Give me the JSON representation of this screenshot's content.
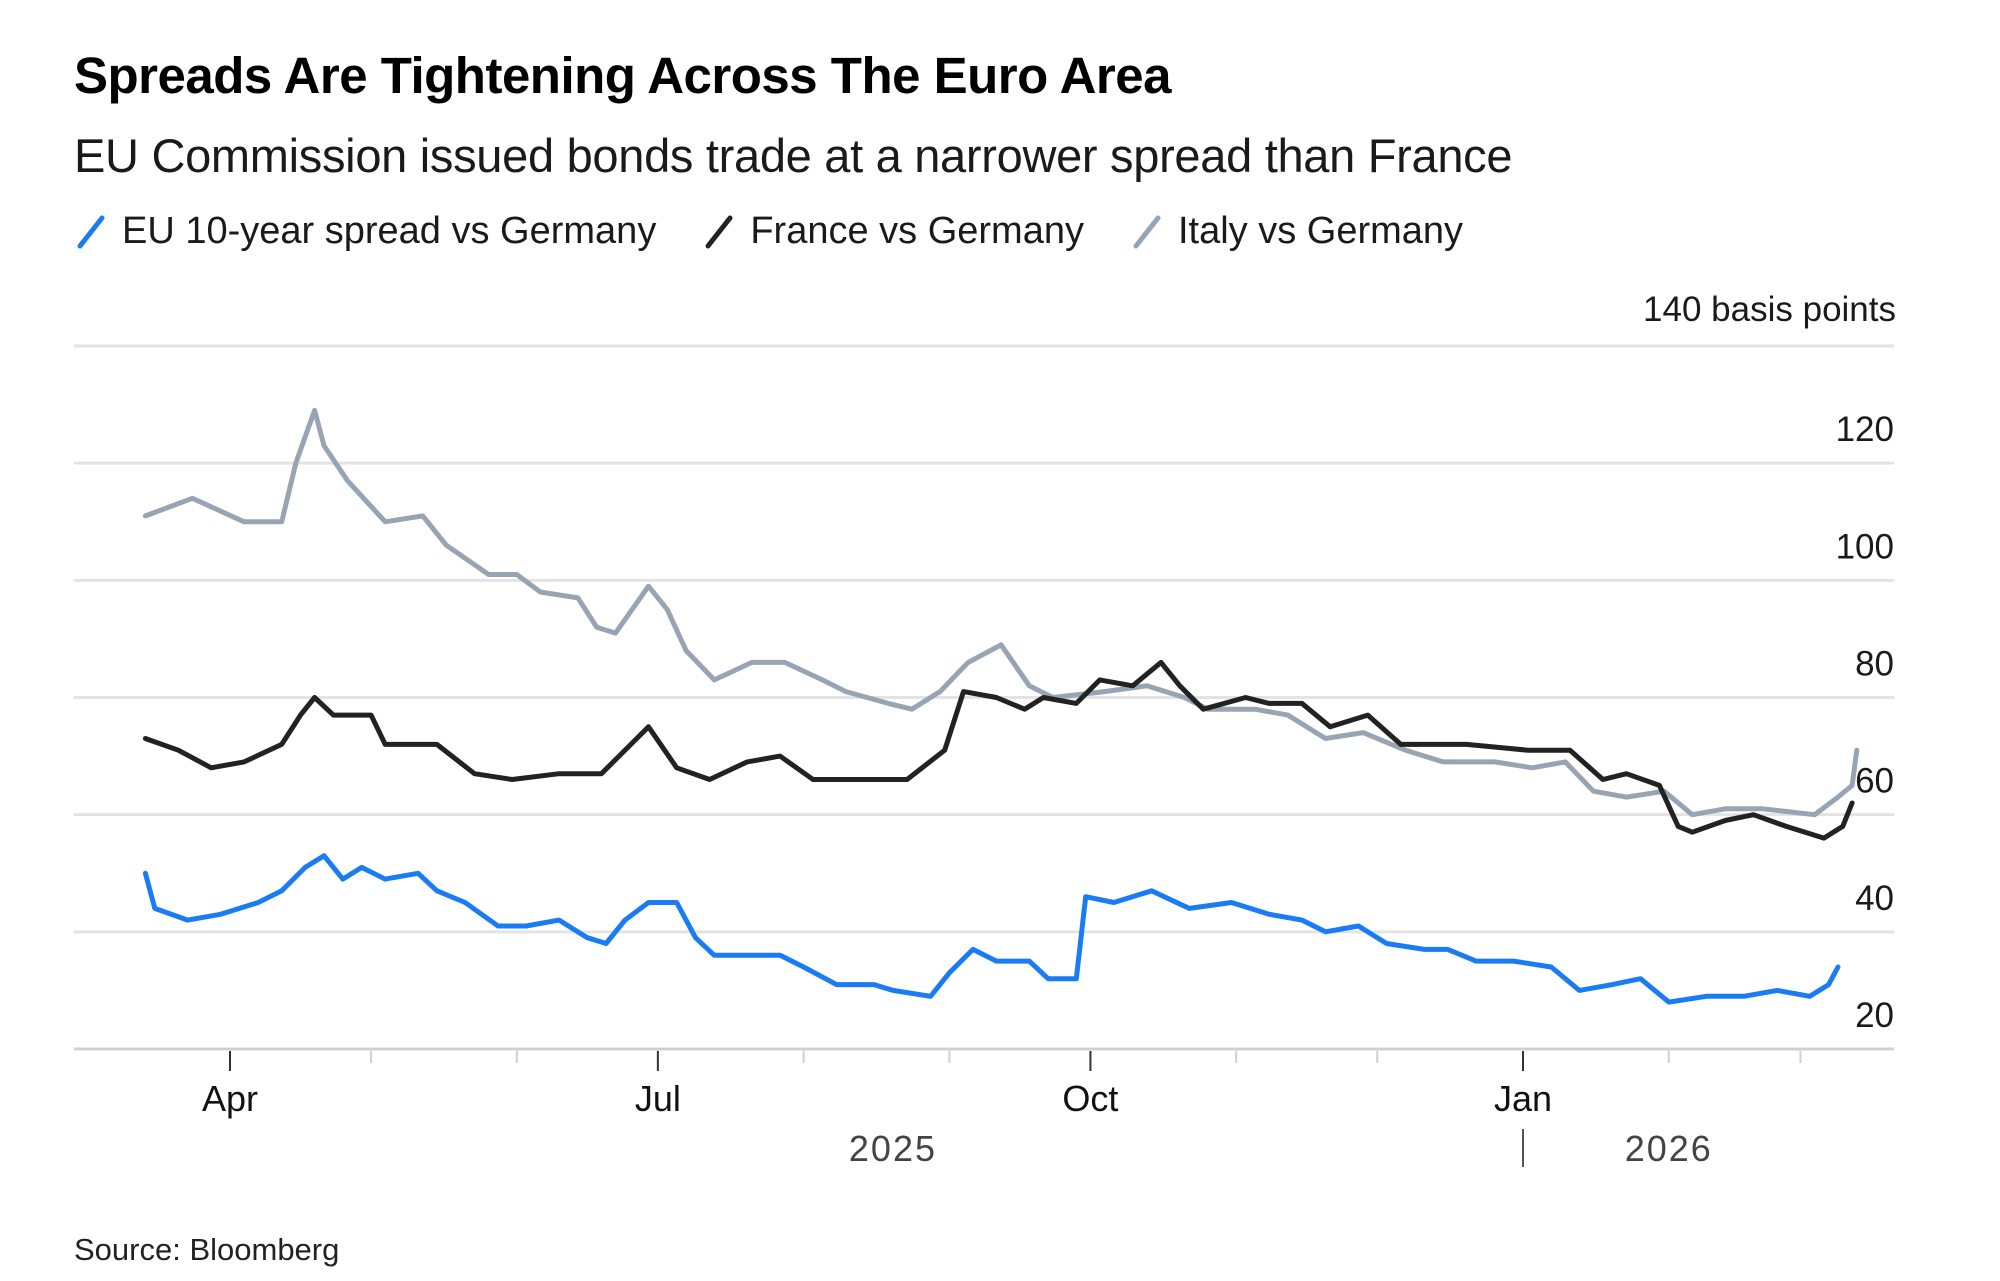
{
  "chart_data": {
    "type": "line",
    "title": "Spreads Are Tightening Across The Euro Area",
    "subtitle": "EU Commission issued bonds trade at a narrower spread than France",
    "ylabel": "140 basis points",
    "xlabel": "",
    "ylim": [
      20,
      140
    ],
    "yticks": [
      120,
      100,
      80,
      60,
      40,
      20
    ],
    "xlim": [
      "2025-03-10",
      "2026-03-15"
    ],
    "xticks": [
      {
        "date": "2025-04-01",
        "label": "Apr",
        "major": true
      },
      {
        "date": "2025-05-01",
        "label": "",
        "major": false
      },
      {
        "date": "2025-06-01",
        "label": "",
        "major": false
      },
      {
        "date": "2025-07-01",
        "label": "Jul",
        "major": true
      },
      {
        "date": "2025-08-01",
        "label": "",
        "major": false
      },
      {
        "date": "2025-09-01",
        "label": "",
        "major": false
      },
      {
        "date": "2025-10-01",
        "label": "Oct",
        "major": true
      },
      {
        "date": "2025-11-01",
        "label": "",
        "major": false
      },
      {
        "date": "2025-12-01",
        "label": "",
        "major": false
      },
      {
        "date": "2026-01-01",
        "label": "Jan",
        "major": true
      },
      {
        "date": "2026-02-01",
        "label": "",
        "major": false
      },
      {
        "date": "2026-03-01",
        "label": "",
        "major": false
      }
    ],
    "year_labels": [
      {
        "label": "2025",
        "date": "2025-08-20"
      },
      {
        "label": "2026",
        "date": "2026-02-01"
      }
    ],
    "year_divider_date": "2026-01-01",
    "grid": true,
    "legend_position": "top-left",
    "series": [
      {
        "name": "EU 10-year spread vs Germany",
        "color": "#1a7cf5",
        "points": [
          [
            "2025-03-14",
            50
          ],
          [
            "2025-03-16",
            44
          ],
          [
            "2025-03-23",
            42
          ],
          [
            "2025-03-30",
            43
          ],
          [
            "2025-04-07",
            45
          ],
          [
            "2025-04-12",
            47
          ],
          [
            "2025-04-17",
            51
          ],
          [
            "2025-04-21",
            53
          ],
          [
            "2025-04-25",
            49
          ],
          [
            "2025-04-29",
            51
          ],
          [
            "2025-05-04",
            49
          ],
          [
            "2025-05-11",
            50
          ],
          [
            "2025-05-15",
            47
          ],
          [
            "2025-05-21",
            45
          ],
          [
            "2025-05-28",
            41
          ],
          [
            "2025-06-03",
            41
          ],
          [
            "2025-06-10",
            42
          ],
          [
            "2025-06-16",
            39
          ],
          [
            "2025-06-20",
            38
          ],
          [
            "2025-06-24",
            42
          ],
          [
            "2025-06-29",
            45
          ],
          [
            "2025-07-05",
            45
          ],
          [
            "2025-07-09",
            39
          ],
          [
            "2025-07-13",
            36
          ],
          [
            "2025-07-20",
            36
          ],
          [
            "2025-07-27",
            36
          ],
          [
            "2025-08-01",
            34
          ],
          [
            "2025-08-08",
            31
          ],
          [
            "2025-08-16",
            31
          ],
          [
            "2025-08-20",
            30
          ],
          [
            "2025-08-28",
            29
          ],
          [
            "2025-09-01",
            33
          ],
          [
            "2025-09-06",
            37
          ],
          [
            "2025-09-11",
            35
          ],
          [
            "2025-09-18",
            35
          ],
          [
            "2025-09-22",
            32
          ],
          [
            "2025-09-28",
            32
          ],
          [
            "2025-09-30",
            46
          ],
          [
            "2025-10-06",
            45
          ],
          [
            "2025-10-14",
            47
          ],
          [
            "2025-10-22",
            44
          ],
          [
            "2025-10-31",
            45
          ],
          [
            "2025-11-08",
            43
          ],
          [
            "2025-11-15",
            42
          ],
          [
            "2025-11-20",
            40
          ],
          [
            "2025-11-27",
            41
          ],
          [
            "2025-12-03",
            38
          ],
          [
            "2025-12-11",
            37
          ],
          [
            "2025-12-16",
            37
          ],
          [
            "2025-12-22",
            35
          ],
          [
            "2025-12-30",
            35
          ],
          [
            "2026-01-07",
            34
          ],
          [
            "2026-01-13",
            30
          ],
          [
            "2026-01-20",
            31
          ],
          [
            "2026-01-26",
            32
          ],
          [
            "2026-02-01",
            28
          ],
          [
            "2026-02-09",
            29
          ],
          [
            "2026-02-17",
            29
          ],
          [
            "2026-02-24",
            30
          ],
          [
            "2026-03-03",
            29
          ],
          [
            "2026-03-07",
            31
          ],
          [
            "2026-03-09",
            34
          ]
        ]
      },
      {
        "name": "France vs Germany",
        "color": "#222222",
        "points": [
          [
            "2025-03-14",
            73
          ],
          [
            "2025-03-21",
            71
          ],
          [
            "2025-03-28",
            68
          ],
          [
            "2025-04-04",
            69
          ],
          [
            "2025-04-12",
            72
          ],
          [
            "2025-04-16",
            77
          ],
          [
            "2025-04-19",
            80
          ],
          [
            "2025-04-23",
            77
          ],
          [
            "2025-05-01",
            77
          ],
          [
            "2025-05-04",
            72
          ],
          [
            "2025-05-15",
            72
          ],
          [
            "2025-05-23",
            67
          ],
          [
            "2025-05-31",
            66
          ],
          [
            "2025-06-10",
            67
          ],
          [
            "2025-06-19",
            67
          ],
          [
            "2025-06-29",
            75
          ],
          [
            "2025-07-05",
            68
          ],
          [
            "2025-07-12",
            66
          ],
          [
            "2025-07-20",
            69
          ],
          [
            "2025-07-27",
            70
          ],
          [
            "2025-08-03",
            66
          ],
          [
            "2025-08-10",
            66
          ],
          [
            "2025-08-18",
            66
          ],
          [
            "2025-08-23",
            66
          ],
          [
            "2025-08-31",
            71
          ],
          [
            "2025-09-04",
            81
          ],
          [
            "2025-09-11",
            80
          ],
          [
            "2025-09-17",
            78
          ],
          [
            "2025-09-21",
            80
          ],
          [
            "2025-09-28",
            79
          ],
          [
            "2025-10-03",
            83
          ],
          [
            "2025-10-10",
            82
          ],
          [
            "2025-10-16",
            86
          ],
          [
            "2025-10-20",
            82
          ],
          [
            "2025-10-25",
            78
          ],
          [
            "2025-11-03",
            80
          ],
          [
            "2025-11-08",
            79
          ],
          [
            "2025-11-15",
            79
          ],
          [
            "2025-11-21",
            75
          ],
          [
            "2025-11-29",
            77
          ],
          [
            "2025-12-06",
            72
          ],
          [
            "2025-12-14",
            72
          ],
          [
            "2025-12-20",
            72
          ],
          [
            "2026-01-02",
            71
          ],
          [
            "2026-01-11",
            71
          ],
          [
            "2026-01-18",
            66
          ],
          [
            "2026-01-23",
            67
          ],
          [
            "2026-01-30",
            65
          ],
          [
            "2026-02-03",
            58
          ],
          [
            "2026-02-06",
            57
          ],
          [
            "2026-02-13",
            59
          ],
          [
            "2026-02-19",
            60
          ],
          [
            "2026-02-26",
            58
          ],
          [
            "2026-03-06",
            56
          ],
          [
            "2026-03-10",
            58
          ],
          [
            "2026-03-12",
            62
          ]
        ]
      },
      {
        "name": "Italy vs Germany",
        "color": "#97a4b4",
        "points": [
          [
            "2025-03-14",
            111
          ],
          [
            "2025-03-24",
            114
          ],
          [
            "2025-04-04",
            110
          ],
          [
            "2025-04-12",
            110
          ],
          [
            "2025-04-15",
            120
          ],
          [
            "2025-04-19",
            129
          ],
          [
            "2025-04-21",
            123
          ],
          [
            "2025-04-26",
            117
          ],
          [
            "2025-05-04",
            110
          ],
          [
            "2025-05-12",
            111
          ],
          [
            "2025-05-17",
            106
          ],
          [
            "2025-05-26",
            101
          ],
          [
            "2025-06-01",
            101
          ],
          [
            "2025-06-06",
            98
          ],
          [
            "2025-06-14",
            97
          ],
          [
            "2025-06-18",
            92
          ],
          [
            "2025-06-22",
            91
          ],
          [
            "2025-06-29",
            99
          ],
          [
            "2025-07-03",
            95
          ],
          [
            "2025-07-07",
            88
          ],
          [
            "2025-07-13",
            83
          ],
          [
            "2025-07-21",
            86
          ],
          [
            "2025-07-28",
            86
          ],
          [
            "2025-08-05",
            83
          ],
          [
            "2025-08-10",
            81
          ],
          [
            "2025-08-19",
            79
          ],
          [
            "2025-08-24",
            78
          ],
          [
            "2025-08-30",
            81
          ],
          [
            "2025-09-05",
            86
          ],
          [
            "2025-09-12",
            89
          ],
          [
            "2025-09-18",
            82
          ],
          [
            "2025-09-23",
            80
          ],
          [
            "2025-10-04",
            81
          ],
          [
            "2025-10-13",
            82
          ],
          [
            "2025-10-21",
            80
          ],
          [
            "2025-10-26",
            78
          ],
          [
            "2025-11-05",
            78
          ],
          [
            "2025-11-12",
            77
          ],
          [
            "2025-11-20",
            73
          ],
          [
            "2025-11-28",
            74
          ],
          [
            "2025-12-07",
            71
          ],
          [
            "2025-12-15",
            69
          ],
          [
            "2025-12-26",
            69
          ],
          [
            "2026-01-03",
            68
          ],
          [
            "2026-01-10",
            69
          ],
          [
            "2026-01-16",
            64
          ],
          [
            "2026-01-23",
            63
          ],
          [
            "2026-01-31",
            64
          ],
          [
            "2026-02-06",
            60
          ],
          [
            "2026-02-13",
            61
          ],
          [
            "2026-02-21",
            61
          ],
          [
            "2026-03-04",
            60
          ],
          [
            "2026-03-09",
            63
          ],
          [
            "2026-03-12",
            65
          ],
          [
            "2026-03-13",
            71
          ]
        ]
      }
    ],
    "source": "Source: Bloomberg"
  }
}
